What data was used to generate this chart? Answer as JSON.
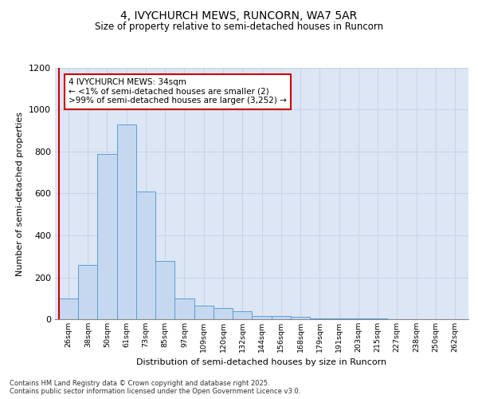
{
  "title1": "4, IVYCHURCH MEWS, RUNCORN, WA7 5AR",
  "title2": "Size of property relative to semi-detached houses in Runcorn",
  "xlabel": "Distribution of semi-detached houses by size in Runcorn",
  "ylabel": "Number of semi-detached properties",
  "bins": [
    "26sqm",
    "38sqm",
    "50sqm",
    "61sqm",
    "73sqm",
    "85sqm",
    "97sqm",
    "109sqm",
    "120sqm",
    "132sqm",
    "144sqm",
    "156sqm",
    "168sqm",
    "179sqm",
    "191sqm",
    "203sqm",
    "215sqm",
    "227sqm",
    "238sqm",
    "250sqm",
    "262sqm"
  ],
  "values": [
    100,
    260,
    790,
    930,
    610,
    280,
    100,
    65,
    55,
    40,
    15,
    15,
    10,
    5,
    5,
    2,
    2,
    0,
    0,
    0,
    0
  ],
  "bar_color": "#c5d8f0",
  "bar_edge_color": "#5a9fd4",
  "annotation_text": "4 IVYCHURCH MEWS: 34sqm\n← <1% of semi-detached houses are smaller (2)\n>99% of semi-detached houses are larger (3,252) →",
  "annotation_box_color": "#ffffff",
  "annotation_box_edge": "#cc0000",
  "marker_line_color": "#cc0000",
  "ylim": [
    0,
    1200
  ],
  "yticks": [
    0,
    200,
    400,
    600,
    800,
    1000,
    1200
  ],
  "grid_color": "#c8d4e8",
  "bg_color": "#dce6f5",
  "footer": "Contains HM Land Registry data © Crown copyright and database right 2025.\nContains public sector information licensed under the Open Government Licence v3.0."
}
